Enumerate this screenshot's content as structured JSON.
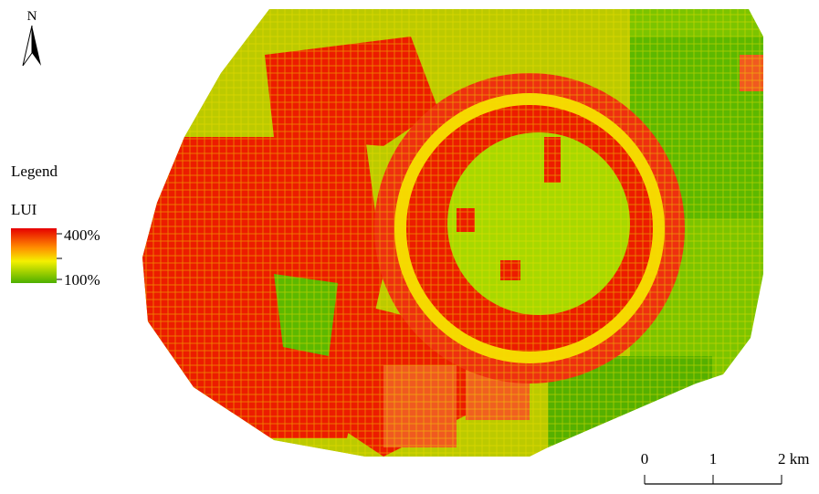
{
  "north": "N",
  "legend": {
    "title": "Legend",
    "field": "LUI",
    "max_label": "400%",
    "min_label": "100%"
  },
  "scale_bar": {
    "labels": [
      "0",
      "1",
      "2 km"
    ]
  }
}
